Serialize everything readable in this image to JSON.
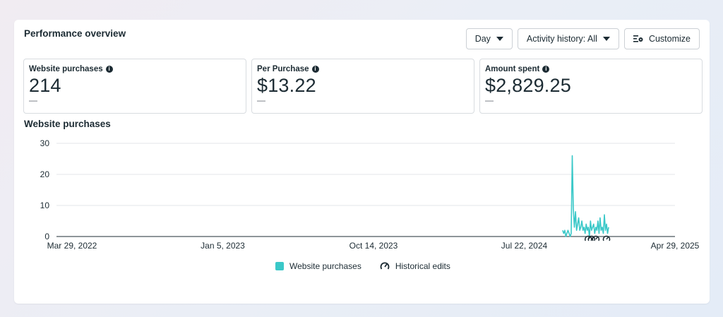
{
  "header": {
    "title": "Performance overview",
    "day_label": "Day",
    "activity_label": "Activity history: All",
    "customize_label": "Customize"
  },
  "metrics": [
    {
      "label": "Website purchases",
      "value": "214",
      "delta": "—"
    },
    {
      "label": "Per Purchase",
      "value": "$13.22",
      "delta": "—"
    },
    {
      "label": "Amount spent",
      "value": "$2,829.25",
      "delta": "—"
    }
  ],
  "chart_section": {
    "title": "Website purchases"
  },
  "legend": {
    "series_label": "Website purchases",
    "edits_label": "Historical edits"
  },
  "colors": {
    "series": "#3ac8c8",
    "grid": "#e3e6ea",
    "text": "#1c2b33"
  },
  "chart_data": {
    "type": "line",
    "title": "Website purchases",
    "y_ticks": [
      0,
      10,
      20,
      30
    ],
    "ylim": [
      0,
      30
    ],
    "x_ticks": [
      "Mar 29, 2022",
      "Jan 5, 2023",
      "Oct 14, 2023",
      "Jul 22, 2024",
      "Apr 29, 2025"
    ],
    "xlim": [
      "2022-03-29",
      "2025-04-29"
    ],
    "grid": true,
    "legend_position": "bottom",
    "series": [
      {
        "name": "Website purchases",
        "x": [
          "2024-10-01",
          "2024-10-03",
          "2024-10-05",
          "2024-10-07",
          "2024-10-09",
          "2024-10-11",
          "2024-10-13",
          "2024-10-15",
          "2024-10-17",
          "2024-10-19",
          "2024-10-21",
          "2024-10-23",
          "2024-10-25",
          "2024-10-27",
          "2024-10-29",
          "2024-10-31",
          "2024-11-02",
          "2024-11-04",
          "2024-11-06",
          "2024-11-08",
          "2024-11-10",
          "2024-11-12",
          "2024-11-14",
          "2024-11-16",
          "2024-11-18",
          "2024-11-20",
          "2024-11-22",
          "2024-11-24",
          "2024-11-26",
          "2024-11-28",
          "2024-11-30",
          "2024-12-02",
          "2024-12-04",
          "2024-12-06",
          "2024-12-08",
          "2024-12-10",
          "2024-12-12",
          "2024-12-14",
          "2024-12-16",
          "2024-12-18",
          "2024-12-20",
          "2024-12-22",
          "2024-12-24",
          "2024-12-26"
        ],
        "values": [
          2,
          1,
          2,
          0,
          1,
          2,
          1,
          0,
          1,
          26,
          9,
          3,
          8,
          2,
          4,
          6,
          2,
          3,
          5,
          2,
          3,
          1,
          4,
          2,
          3,
          0,
          5,
          2,
          3,
          4,
          1,
          3,
          2,
          5,
          1,
          6,
          2,
          3,
          1,
          7,
          2,
          4,
          1,
          3
        ]
      }
    ],
    "historical_edits": [
      "2024-11-18",
      "2024-11-24",
      "2024-12-02",
      "2024-12-22"
    ]
  }
}
